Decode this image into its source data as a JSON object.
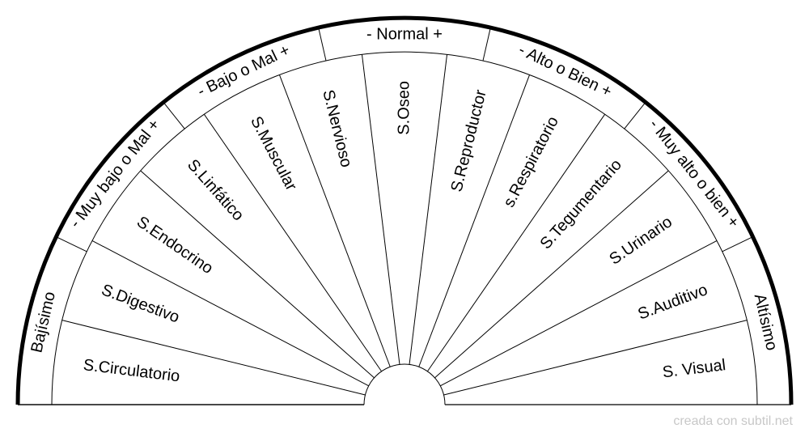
{
  "diagram": {
    "type": "pendulum-chart",
    "outer_ring": [
      {
        "label": "Bajísimo",
        "sectors": 2
      },
      {
        "label": "- Muy bajo o Mal +",
        "sectors": 2
      },
      {
        "label": "- Bajo o Mal +",
        "sectors": 2
      },
      {
        "label": "- Normal +",
        "sectors": 2
      },
      {
        "label": "- Alto o Bien +",
        "sectors": 2
      },
      {
        "label": "- Muy alto o bien +",
        "sectors": 2
      },
      {
        "label": "Altísimo",
        "sectors": 2
      }
    ],
    "sectors": [
      "S.Circulatorio",
      "S.Digestivo",
      "S.Endocrino",
      "S.Linfático",
      "S.Muscular",
      "S.Nervioso",
      "S.Oseo",
      "S.Reproductor",
      "s.Respiratorio",
      "S.Tegumentario",
      "S.Urinario",
      "S.Auditivo",
      "S. Visual"
    ]
  },
  "credit": "creada con subtil.net"
}
